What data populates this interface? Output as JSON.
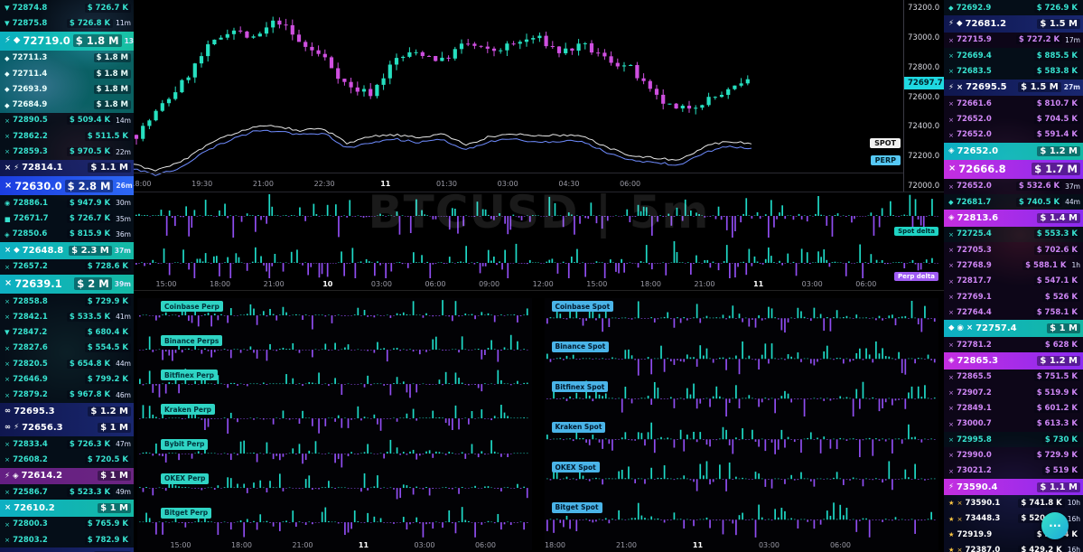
{
  "watermark": "BTCUSD | 5m",
  "colors": {
    "buy_accent": "#37e2cf",
    "sell_accent": "#cf86f5",
    "big_buy_blue": "#2d68f5",
    "big_sell_magenta": "#c42ee0",
    "gold": "#ffc843",
    "candle_up": "#26e0c0",
    "candle_down": "#cf4fe0",
    "line_spot": "#e8e8e8",
    "line_perp": "#6f8cff",
    "bar_up": "#1ed9c6",
    "bar_down": "#8f4df0",
    "last_price_bg": "#1fd9e2"
  },
  "chart": {
    "last_price": "72697.7",
    "spot_label": "SPOT",
    "perp_label": "PERP",
    "price_axis": [
      "73200.0",
      "73000.0",
      "72800.0",
      "72600.0",
      "72400.0",
      "72200.0",
      "72000.0"
    ],
    "time_axis": [
      "18:00",
      "19:30",
      "21:00",
      "22:30",
      "11",
      "01:30",
      "03:00",
      "04:30",
      "06:00"
    ],
    "profile": [
      72340,
      72520,
      72700,
      72920,
      73060,
      72980,
      73120,
      72950,
      72860,
      72660,
      72620,
      72850,
      72900,
      72840,
      72960,
      72900,
      72950,
      73000,
      72900,
      72940,
      72850,
      72790,
      72600,
      72500,
      72560,
      72620,
      72697
    ],
    "spot_line": [
      72140,
      72100,
      72160,
      72260,
      72340,
      72390,
      72400,
      72370,
      72380,
      72280,
      72330,
      72340,
      72320,
      72350,
      72270,
      72330,
      72350,
      72330,
      72340,
      72330,
      72250,
      72200,
      72180,
      72170,
      72260,
      72300,
      72280
    ],
    "perp_line": [
      72110,
      72070,
      72120,
      72230,
      72300,
      72360,
      72370,
      72340,
      72350,
      72250,
      72290,
      72310,
      72290,
      72310,
      72240,
      72300,
      72310,
      72290,
      72300,
      72290,
      72210,
      72170,
      72150,
      72140,
      72220,
      72260,
      72250
    ]
  },
  "delta_panel": {
    "spot_label": "Spot delta",
    "perp_label": "Perp delta",
    "time_axis": [
      "15:00",
      "18:00",
      "21:00",
      "10",
      "03:00",
      "06:00",
      "09:00",
      "12:00",
      "15:00",
      "18:00",
      "21:00",
      "11",
      "03:00",
      "06:00"
    ]
  },
  "perp_panel": {
    "exchanges": [
      "Coinbase Perp",
      "Binance Perps",
      "Bitfinex Perp",
      "Kraken Perp",
      "Bybit Perp",
      "OKEX Perp",
      "Bitget Perp"
    ],
    "time_axis": [
      "15:00",
      "18:00",
      "21:00",
      "11",
      "03:00",
      "06:00"
    ]
  },
  "spot_panel": {
    "exchanges": [
      "Coinbase Spot",
      "Binance Spot",
      "Bitfinex Spot",
      "Kraken Spot",
      "OKEX Spot",
      "Bitget Spot"
    ],
    "time_axis": [
      "18:00",
      "21:00",
      "11",
      "03:00",
      "06:00"
    ]
  },
  "fab": {
    "label": "···"
  },
  "left_feed": {
    "rows": [
      {
        "icons": [
          "bitfinex"
        ],
        "price": "72874.8",
        "amount": "$ 726.7 K",
        "time": "",
        "cls": "buy h16"
      },
      {
        "icons": [
          "bitfinex"
        ],
        "price": "72875.8",
        "amount": "$ 726.8 K",
        "time": "11m",
        "cls": "buy h16"
      },
      {
        "icons": [
          "lightning",
          "binance"
        ],
        "price": "72719.0",
        "amount": "$ 1.8 M",
        "time": "13m",
        "cls": "buy2 h20"
      },
      {
        "icons": [
          "binance"
        ],
        "price": "72711.3",
        "amount": "$ 1.8 M",
        "time": "",
        "cls": "buy1 h16 b7"
      },
      {
        "icons": [
          "binance"
        ],
        "price": "72711.4",
        "amount": "$ 1.8 M",
        "time": "",
        "cls": "buy1 h16 b7"
      },
      {
        "icons": [
          "binance"
        ],
        "price": "72693.9",
        "amount": "$ 1.8 M",
        "time": "",
        "cls": "buy1 h16 b7"
      },
      {
        "icons": [
          "binance"
        ],
        "price": "72684.9",
        "amount": "$ 1.8 M",
        "time": "",
        "cls": "buy1 h16 b7"
      },
      {
        "icons": [
          "okex"
        ],
        "price": "72890.5",
        "amount": "$ 509.4 K",
        "time": "14m",
        "cls": "buy h16"
      },
      {
        "icons": [
          "okex"
        ],
        "price": "72862.2",
        "amount": "$ 511.5 K",
        "time": "",
        "cls": "buy h16"
      },
      {
        "icons": [
          "okex"
        ],
        "price": "72859.3",
        "amount": "$ 970.5 K",
        "time": "22m",
        "cls": "buy h16"
      },
      {
        "icons": [
          "okex",
          "lightning"
        ],
        "price": "72814.1",
        "amount": "$ 1.1 M",
        "time": "",
        "cls": "navy h18"
      },
      {
        "icons": [
          "okex"
        ],
        "price": "72630.0",
        "amount": "$ 2.8 M",
        "time": "26m",
        "cls": "blue2 h20"
      },
      {
        "icons": [
          "coinbase"
        ],
        "price": "72886.1",
        "amount": "$ 947.9 K",
        "time": "30m",
        "cls": "buy h16"
      },
      {
        "icons": [
          "bybit"
        ],
        "price": "72671.7",
        "amount": "$ 726.7 K",
        "time": "35m",
        "cls": "buy h16"
      },
      {
        "icons": [
          "huobi"
        ],
        "price": "72850.6",
        "amount": "$ 815.9 K",
        "time": "36m",
        "cls": "buy h16"
      },
      {
        "icons": [
          "okex",
          "binance"
        ],
        "price": "72648.8",
        "amount": "$ 2.3 M",
        "time": "37m",
        "cls": "cyan2 h18"
      },
      {
        "icons": [
          "okex"
        ],
        "price": "72657.2",
        "amount": "$ 728.6 K",
        "time": "",
        "cls": "buy h16"
      },
      {
        "icons": [
          "okex"
        ],
        "price": "72639.1",
        "amount": "$ 2 M",
        "time": "39m",
        "cls": "cyan2 h20"
      },
      {
        "icons": [
          "okex"
        ],
        "price": "72858.8",
        "amount": "$ 729.9 K",
        "time": "",
        "cls": "buy h16"
      },
      {
        "icons": [
          "okex"
        ],
        "price": "72842.1",
        "amount": "$ 533.5 K",
        "time": "41m",
        "cls": "buy h16"
      },
      {
        "icons": [
          "bitfinex"
        ],
        "price": "72847.2",
        "amount": "$ 680.4 K",
        "time": "",
        "cls": "buy h16"
      },
      {
        "icons": [
          "okex"
        ],
        "price": "72827.6",
        "amount": "$ 554.5 K",
        "time": "",
        "cls": "buy h16"
      },
      {
        "icons": [
          "okex"
        ],
        "price": "72820.5",
        "amount": "$ 654.8 K",
        "time": "44m",
        "cls": "buy h16"
      },
      {
        "icons": [
          "okex"
        ],
        "price": "72646.9",
        "amount": "$ 799.2 K",
        "time": "",
        "cls": "buy h16"
      },
      {
        "icons": [
          "okex"
        ],
        "price": "72879.2",
        "amount": "$ 967.8 K",
        "time": "46m",
        "cls": "buy h16"
      },
      {
        "icons": [
          "deribit"
        ],
        "price": "72695.3",
        "amount": "$ 1.2 M",
        "time": "",
        "cls": "navy h18"
      },
      {
        "icons": [
          "deribit",
          "lightning"
        ],
        "price": "72656.3",
        "amount": "$ 1 M",
        "time": "",
        "cls": "navy h18"
      },
      {
        "icons": [
          "okex"
        ],
        "price": "72833.4",
        "amount": "$ 726.3 K",
        "time": "47m",
        "cls": "buy h16"
      },
      {
        "icons": [
          "okex"
        ],
        "price": "72608.2",
        "amount": "$ 720.5 K",
        "time": "",
        "cls": "buy h16"
      },
      {
        "icons": [
          "lightning",
          "huobi"
        ],
        "price": "72614.2",
        "amount": "$ 1 M",
        "time": "",
        "cls": "sell1 h18"
      },
      {
        "icons": [
          "okex"
        ],
        "price": "72586.7",
        "amount": "$ 523.3 K",
        "time": "49m",
        "cls": "buy h16"
      },
      {
        "icons": [
          "okex"
        ],
        "price": "72610.2",
        "amount": "$ 1 M",
        "time": "",
        "cls": "cyan2 h18"
      },
      {
        "icons": [
          "okex"
        ],
        "price": "72800.3",
        "amount": "$ 765.9 K",
        "time": "",
        "cls": "buy h16"
      },
      {
        "icons": [
          "okex"
        ],
        "price": "72803.2",
        "amount": "$ 782.9 K",
        "time": "",
        "cls": "buy h16"
      },
      {
        "icons": [
          "okex",
          "lightning"
        ],
        "price": "72617.9",
        "amount": "$ 2 M",
        "time": "",
        "cls": "navy h20"
      }
    ]
  },
  "right_feed": {
    "rows": [
      {
        "icons": [
          "binance"
        ],
        "price": "72692.9",
        "amount": "$ 726.9 K",
        "time": "",
        "cls": "buy h16"
      },
      {
        "icons": [
          "lightning",
          "binance"
        ],
        "price": "72681.2",
        "amount": "$ 1.5 M",
        "time": "",
        "cls": "navy h18"
      },
      {
        "icons": [
          "okex"
        ],
        "price": "72715.9",
        "amount": "$ 727.2 K",
        "time": "17m",
        "cls": "sell h16"
      },
      {
        "icons": [
          "okex"
        ],
        "price": "72669.4",
        "amount": "$ 885.5 K",
        "time": "",
        "cls": "buy h16"
      },
      {
        "icons": [
          "okex"
        ],
        "price": "72683.5",
        "amount": "$ 583.8 K",
        "time": "",
        "cls": "buy h16"
      },
      {
        "icons": [
          "lightning",
          "okex"
        ],
        "price": "72695.5",
        "amount": "$ 1.5 M",
        "time": "27m",
        "cls": "navy h18"
      },
      {
        "icons": [
          "okex"
        ],
        "price": "72661.6",
        "amount": "$ 810.7 K",
        "time": "",
        "cls": "sell h16"
      },
      {
        "icons": [
          "okex"
        ],
        "price": "72652.0",
        "amount": "$ 704.5 K",
        "time": "",
        "cls": "sell h16"
      },
      {
        "icons": [
          "okex"
        ],
        "price": "72652.0",
        "amount": "$ 591.4 K",
        "time": "",
        "cls": "sell h16"
      },
      {
        "icons": [
          "huobi"
        ],
        "price": "72652.0",
        "amount": "$ 1.2 M",
        "time": "",
        "cls": "cyan2 h18"
      },
      {
        "icons": [
          "okex"
        ],
        "price": "72666.8",
        "amount": "$ 1.7 M",
        "time": "",
        "cls": "sell2 h20"
      },
      {
        "icons": [
          "okex"
        ],
        "price": "72652.0",
        "amount": "$ 532.6 K",
        "time": "37m",
        "cls": "sell h16"
      },
      {
        "icons": [
          "binance"
        ],
        "price": "72681.7",
        "amount": "$ 740.5 K",
        "time": "44m",
        "cls": "buy h16"
      },
      {
        "icons": [
          "huobi"
        ],
        "price": "72813.6",
        "amount": "$ 1.4 M",
        "time": "",
        "cls": "sell2 h18"
      },
      {
        "icons": [
          "okex"
        ],
        "price": "72725.4",
        "amount": "$ 553.3 K",
        "time": "",
        "cls": "buy h16"
      },
      {
        "icons": [
          "okex"
        ],
        "price": "72705.3",
        "amount": "$ 702.6 K",
        "time": "",
        "cls": "sell h16"
      },
      {
        "icons": [
          "okex"
        ],
        "price": "72768.9",
        "amount": "$ 588.1 K",
        "time": "1h",
        "cls": "sell h16"
      },
      {
        "icons": [
          "okex"
        ],
        "price": "72817.7",
        "amount": "$ 547.1 K",
        "time": "",
        "cls": "sell h16"
      },
      {
        "icons": [
          "okex"
        ],
        "price": "72769.1",
        "amount": "$ 526 K",
        "time": "",
        "cls": "sell h16"
      },
      {
        "icons": [
          "okex"
        ],
        "price": "72764.4",
        "amount": "$ 758.1 K",
        "time": "",
        "cls": "sell h16"
      },
      {
        "icons": [
          "binance",
          "coinbase",
          "okex"
        ],
        "price": "72757.4",
        "amount": "$ 1 M",
        "time": "",
        "cls": "cyan2 h18"
      },
      {
        "icons": [
          "okex"
        ],
        "price": "72781.2",
        "amount": "$ 628 K",
        "time": "",
        "cls": "sell h16"
      },
      {
        "icons": [
          "huobi"
        ],
        "price": "72865.3",
        "amount": "$ 1.2 M",
        "time": "",
        "cls": "sell2 h18"
      },
      {
        "icons": [
          "okex"
        ],
        "price": "72865.5",
        "amount": "$ 751.5 K",
        "time": "",
        "cls": "sell h16"
      },
      {
        "icons": [
          "okex"
        ],
        "price": "72907.2",
        "amount": "$ 519.9 K",
        "time": "",
        "cls": "sell h16"
      },
      {
        "icons": [
          "okex"
        ],
        "price": "72849.1",
        "amount": "$ 601.2 K",
        "time": "",
        "cls": "sell h16"
      },
      {
        "icons": [
          "okex"
        ],
        "price": "73000.7",
        "amount": "$ 613.3 K",
        "time": "",
        "cls": "sell h16"
      },
      {
        "icons": [
          "okex"
        ],
        "price": "72995.8",
        "amount": "$ 730 K",
        "time": "",
        "cls": "buy h16"
      },
      {
        "icons": [
          "okex"
        ],
        "price": "72990.0",
        "amount": "$ 729.9 K",
        "time": "",
        "cls": "sell h16"
      },
      {
        "icons": [
          "okex"
        ],
        "price": "73021.2",
        "amount": "$ 519 K",
        "time": "",
        "cls": "sell h16"
      },
      {
        "icons": [
          "lightning"
        ],
        "price": "73590.4",
        "amount": "$ 1.1 M",
        "time": "",
        "cls": "sell2 h18"
      },
      {
        "icons": [
          "shield",
          "okex"
        ],
        "price": "73590.1",
        "amount": "$ 741.8 K",
        "time": "10h",
        "cls": "gold h16"
      },
      {
        "icons": [
          "shield",
          "okex"
        ],
        "price": "73448.3",
        "amount": "$ 520.8 K",
        "time": "16h",
        "cls": "gold h16"
      },
      {
        "icons": [
          "shield"
        ],
        "price": "72919.9",
        "amount": "$ 359.4 K",
        "time": "",
        "cls": "gold h16"
      },
      {
        "icons": [
          "shield",
          "okex"
        ],
        "price": "72387.0",
        "amount": "$ 429.2 K",
        "time": "16h",
        "cls": "gold h16"
      }
    ]
  }
}
